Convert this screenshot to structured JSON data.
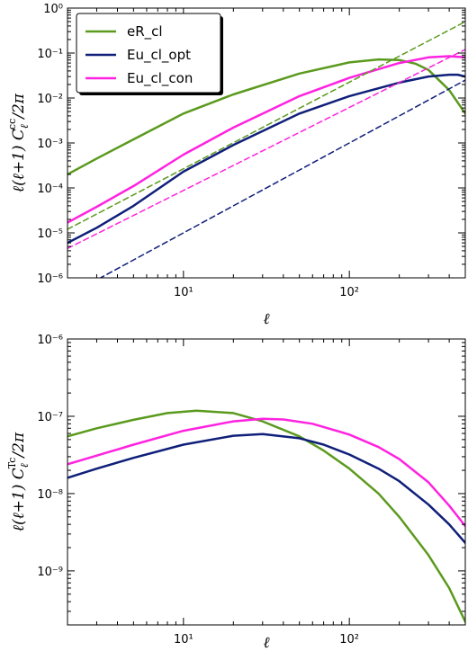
{
  "chart_data": [
    {
      "type": "line",
      "xlabel": "ℓ",
      "ylabel": "ℓ(ℓ+1) C_ℓ^cc/2π",
      "ylabel_main": "ℓ(ℓ+1) C",
      "ylabel_sub": "ℓ",
      "ylabel_sup": "cc",
      "ylabel_tail": "/2π",
      "xscale": "log",
      "yscale": "log",
      "xlim": [
        2,
        500
      ],
      "ylim": [
        1e-06,
        1
      ],
      "xticks": [
        {
          "value": 10,
          "label": "10¹"
        },
        {
          "value": 100,
          "label": "10²"
        }
      ],
      "yticks": [
        {
          "value": 1e-06,
          "label": "10⁻⁶"
        },
        {
          "value": 1e-05,
          "label": "10⁻⁵"
        },
        {
          "value": 0.0001,
          "label": "10⁻⁴"
        },
        {
          "value": 0.001,
          "label": "10⁻³"
        },
        {
          "value": 0.01,
          "label": "10⁻²"
        },
        {
          "value": 0.1,
          "label": "10⁻¹"
        },
        {
          "value": 1,
          "label": "10⁰"
        }
      ],
      "legend": {
        "placement": "top-left"
      },
      "series": [
        {
          "name": "eR_cl",
          "color": "#5b9a1e",
          "style": "solid",
          "x": [
            2,
            3,
            5,
            10,
            20,
            50,
            100,
            150,
            200,
            250,
            300,
            400,
            500
          ],
          "y": [
            0.0002,
            0.00045,
            0.0012,
            0.0045,
            0.012,
            0.035,
            0.062,
            0.072,
            0.07,
            0.058,
            0.042,
            0.015,
            0.0045
          ]
        },
        {
          "name": "Eu_cl_opt",
          "color": "#0f1f7a",
          "style": "solid",
          "x": [
            2,
            3,
            5,
            10,
            20,
            50,
            100,
            200,
            300,
            400,
            450,
            500
          ],
          "y": [
            6e-06,
            1.3e-05,
            4e-05,
            0.00023,
            0.0009,
            0.0045,
            0.011,
            0.022,
            0.03,
            0.033,
            0.033,
            0.03
          ]
        },
        {
          "name": "Eu_cl_con",
          "color": "#ff22e0",
          "style": "solid",
          "x": [
            2,
            3,
            5,
            10,
            20,
            50,
            100,
            200,
            300,
            400,
            500
          ],
          "y": [
            1.7e-05,
            3.8e-05,
            0.00011,
            0.00055,
            0.0022,
            0.011,
            0.028,
            0.06,
            0.08,
            0.085,
            0.08
          ]
        },
        {
          "name": "",
          "color": "#5b9a1e",
          "style": "dashed",
          "x": [
            2,
            500
          ],
          "y": [
            1.2e-05,
            0.5
          ]
        },
        {
          "name": "",
          "color": "#0f1f7a",
          "style": "dashed",
          "x": [
            2,
            500
          ],
          "y": [
            4e-07,
            0.025
          ]
        },
        {
          "name": "",
          "color": "#ff22e0",
          "style": "dashed",
          "x": [
            2,
            500
          ],
          "y": [
            4.5e-06,
            0.12
          ]
        }
      ]
    },
    {
      "type": "line",
      "xlabel": "ℓ",
      "ylabel": "ℓ(ℓ+1) C_ℓ^Tc/2π",
      "ylabel_main": "ℓ(ℓ+1) C",
      "ylabel_sub": "ℓ",
      "ylabel_sup": "Tc",
      "ylabel_tail": "/2π",
      "xscale": "log",
      "yscale": "log",
      "xlim": [
        2,
        500
      ],
      "ylim": [
        2e-10,
        1e-06
      ],
      "xticks": [
        {
          "value": 10,
          "label": "10¹"
        },
        {
          "value": 100,
          "label": "10²"
        }
      ],
      "yticks": [
        {
          "value": 1e-09,
          "label": "10⁻⁹"
        },
        {
          "value": 1e-08,
          "label": "10⁻⁸"
        },
        {
          "value": 1e-07,
          "label": "10⁻⁷"
        },
        {
          "value": 1e-06,
          "label": "10⁻⁶"
        }
      ],
      "series": [
        {
          "name": "eR_cl",
          "color": "#5b9a1e",
          "style": "solid",
          "x": [
            2,
            3,
            5,
            8,
            12,
            20,
            30,
            50,
            70,
            100,
            150,
            200,
            300,
            400,
            500
          ],
          "y": [
            5.5e-08,
            7e-08,
            9e-08,
            1.1e-07,
            1.18e-07,
            1.1e-07,
            8.6e-08,
            5.5e-08,
            3.6e-08,
            2.1e-08,
            1e-08,
            5e-09,
            1.6e-09,
            6e-10,
            2.2e-10
          ]
        },
        {
          "name": "Eu_cl_opt",
          "color": "#0f1f7a",
          "style": "solid",
          "x": [
            2,
            3,
            5,
            10,
            20,
            30,
            50,
            70,
            100,
            150,
            200,
            300,
            400,
            500
          ],
          "y": [
            1.6e-08,
            2.1e-08,
            2.9e-08,
            4.3e-08,
            5.6e-08,
            5.9e-08,
            5.2e-08,
            4.3e-08,
            3.2e-08,
            2.1e-08,
            1.45e-08,
            7.2e-09,
            4e-09,
            2.3e-09
          ]
        },
        {
          "name": "Eu_cl_con",
          "color": "#ff22e0",
          "style": "solid",
          "x": [
            2,
            3,
            5,
            10,
            20,
            30,
            40,
            60,
            100,
            150,
            200,
            300,
            400,
            500
          ],
          "y": [
            2.4e-08,
            3.1e-08,
            4.3e-08,
            6.5e-08,
            8.6e-08,
            9.3e-08,
            9.1e-08,
            8e-08,
            5.8e-08,
            4e-08,
            2.8e-08,
            1.4e-08,
            7e-09,
            3.8e-09
          ]
        }
      ]
    }
  ]
}
